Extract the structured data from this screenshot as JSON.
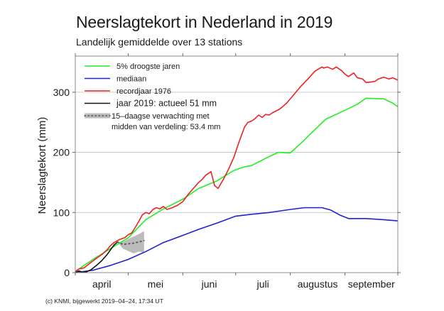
{
  "chart_data": {
    "type": "line",
    "title": "Neerslagtekort in Nederland in 2019",
    "subtitle": "Landelijk gemiddelde over 13 stations",
    "xlabel": "",
    "ylabel": "Neerslagtekort (mm)",
    "x_unit": "days since 1 April",
    "xlim": [
      0,
      183
    ],
    "ylim": [
      0,
      360
    ],
    "yticks": [
      0,
      100,
      200,
      300
    ],
    "ytick_labels": [
      "0",
      "100",
      "200",
      "300"
    ],
    "grid": "horizontal",
    "month_boundaries": [
      0,
      30,
      61,
      91,
      122,
      153,
      183
    ],
    "month_labels": [
      "april",
      "mei",
      "juni",
      "juli",
      "augustus",
      "september"
    ],
    "legend_position": "top-left",
    "series": [
      {
        "name": "5% droogste jaren",
        "color": "#22ee22",
        "x": [
          0,
          10,
          20,
          30,
          40,
          50,
          61,
          70,
          80,
          90,
          96,
          100,
          108,
          115,
          122,
          128,
          135,
          142,
          153,
          160,
          165,
          175,
          180,
          183
        ],
        "y": [
          2,
          22,
          40,
          58,
          88,
          106,
          122,
          140,
          152,
          170,
          176,
          178,
          190,
          200,
          199,
          215,
          235,
          255,
          270,
          280,
          290,
          289,
          282,
          276
        ]
      },
      {
        "name": "mediaan",
        "color": "#2222cc",
        "x": [
          0,
          10,
          20,
          30,
          40,
          50,
          61,
          70,
          80,
          91,
          100,
          110,
          122,
          130,
          140,
          145,
          150,
          155,
          165,
          175,
          183
        ],
        "y": [
          0,
          4,
          12,
          22,
          35,
          50,
          62,
          72,
          82,
          94,
          97,
          100,
          105,
          108,
          108,
          104,
          96,
          90,
          90,
          88,
          86
        ]
      },
      {
        "name": "recordjaar 1976",
        "color": "#ee2222",
        "x": [
          0,
          2,
          5,
          8,
          12,
          15,
          18,
          20,
          22,
          25,
          28,
          30,
          32,
          34,
          36,
          38,
          40,
          42,
          44,
          46,
          48,
          50,
          52,
          55,
          58,
          61,
          64,
          67,
          70,
          72,
          74,
          77,
          79,
          81,
          84,
          87,
          90,
          93,
          96,
          98,
          100,
          102,
          104,
          106,
          108,
          110,
          112,
          116,
          120,
          124,
          128,
          132,
          136,
          140,
          141,
          143,
          146,
          148,
          151,
          153,
          155,
          158,
          160,
          163,
          165,
          168,
          170,
          172,
          175,
          178,
          180,
          183
        ],
        "y": [
          2,
          6,
          8,
          15,
          24,
          30,
          38,
          45,
          50,
          55,
          58,
          63,
          66,
          75,
          85,
          96,
          100,
          98,
          105,
          108,
          106,
          110,
          105,
          108,
          112,
          118,
          130,
          140,
          150,
          155,
          162,
          168,
          145,
          140,
          155,
          172,
          192,
          218,
          242,
          250,
          252,
          256,
          262,
          258,
          263,
          262,
          266,
          272,
          282,
          296,
          310,
          322,
          335,
          342,
          340,
          342,
          338,
          342,
          336,
          330,
          326,
          332,
          324,
          322,
          316,
          317,
          318,
          322,
          325,
          322,
          324,
          320
        ]
      },
      {
        "name": "jaar 2019: actueel 51 mm",
        "color": "#111111",
        "x": [
          0,
          2,
          4,
          6,
          9,
          12,
          15,
          18,
          20,
          22,
          24
        ],
        "y": [
          0,
          3,
          1,
          1,
          5,
          12,
          20,
          30,
          38,
          46,
          51
        ]
      },
      {
        "name": "15-daagse verwachting met midden van verdeling: 53.4 mm",
        "color": "#555555",
        "style": "dotted",
        "x": [
          24,
          27,
          30,
          33,
          36,
          39
        ],
        "y": [
          51,
          47,
          48,
          49,
          51,
          53.4
        ],
        "band_color": "#bbbbbb",
        "band_upper": [
          51,
          51,
          56,
          60,
          64,
          69
        ],
        "band_lower": [
          51,
          40,
          36,
          32,
          35,
          33
        ]
      }
    ],
    "legend": [
      {
        "label": "5% droogste jaren",
        "color": "#22ee22",
        "style": "solid"
      },
      {
        "label": "mediaan",
        "color": "#2222cc",
        "style": "solid"
      },
      {
        "label": "recordjaar 1976",
        "color": "#ee2222",
        "style": "solid"
      },
      {
        "label": "jaar 2019: actueel 51 mm",
        "color": "#111111",
        "style": "solid"
      },
      {
        "label": "15–daagse verwachting met",
        "label2": "midden van verdeling: 53.4 mm",
        "color": "#555555",
        "style": "dotted-band"
      }
    ]
  },
  "footer": "(c) KNMI, bijgewerkt 2019–04–24, 17:34 UT"
}
